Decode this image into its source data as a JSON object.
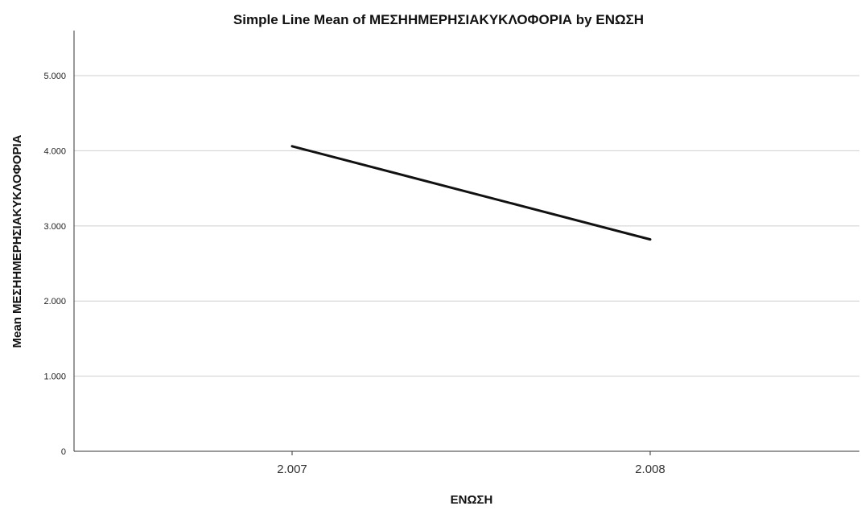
{
  "chart_data": {
    "type": "line",
    "title": "Simple Line Mean of ΜΕΣΗΗΜΕΡΗΣΙΑΚΥΚΛΟΦΟΡΙΑ by ΕΝΩΣΗ",
    "xlabel": "ΕΝΩΣΗ",
    "ylabel": "Mean ΜΕΣΗΗΜΕΡΗΣΙΑΚΥΚΛΟΦΟΡΙΑ",
    "categories": [
      "2.007",
      "2.008"
    ],
    "series": [
      {
        "values": [
          4060,
          2820
        ]
      }
    ],
    "ylim": [
      0,
      5600
    ],
    "yticks": [
      0,
      1000,
      2000,
      3000,
      4000,
      5000
    ],
    "ytick_labels": [
      "0",
      "1.000",
      "2.000",
      "3.000",
      "4.000",
      "5.000"
    ],
    "grid": true,
    "legend": "none",
    "colors": {
      "line": "#111111",
      "grid": "#cfcfcf",
      "axis": "#333333"
    }
  }
}
